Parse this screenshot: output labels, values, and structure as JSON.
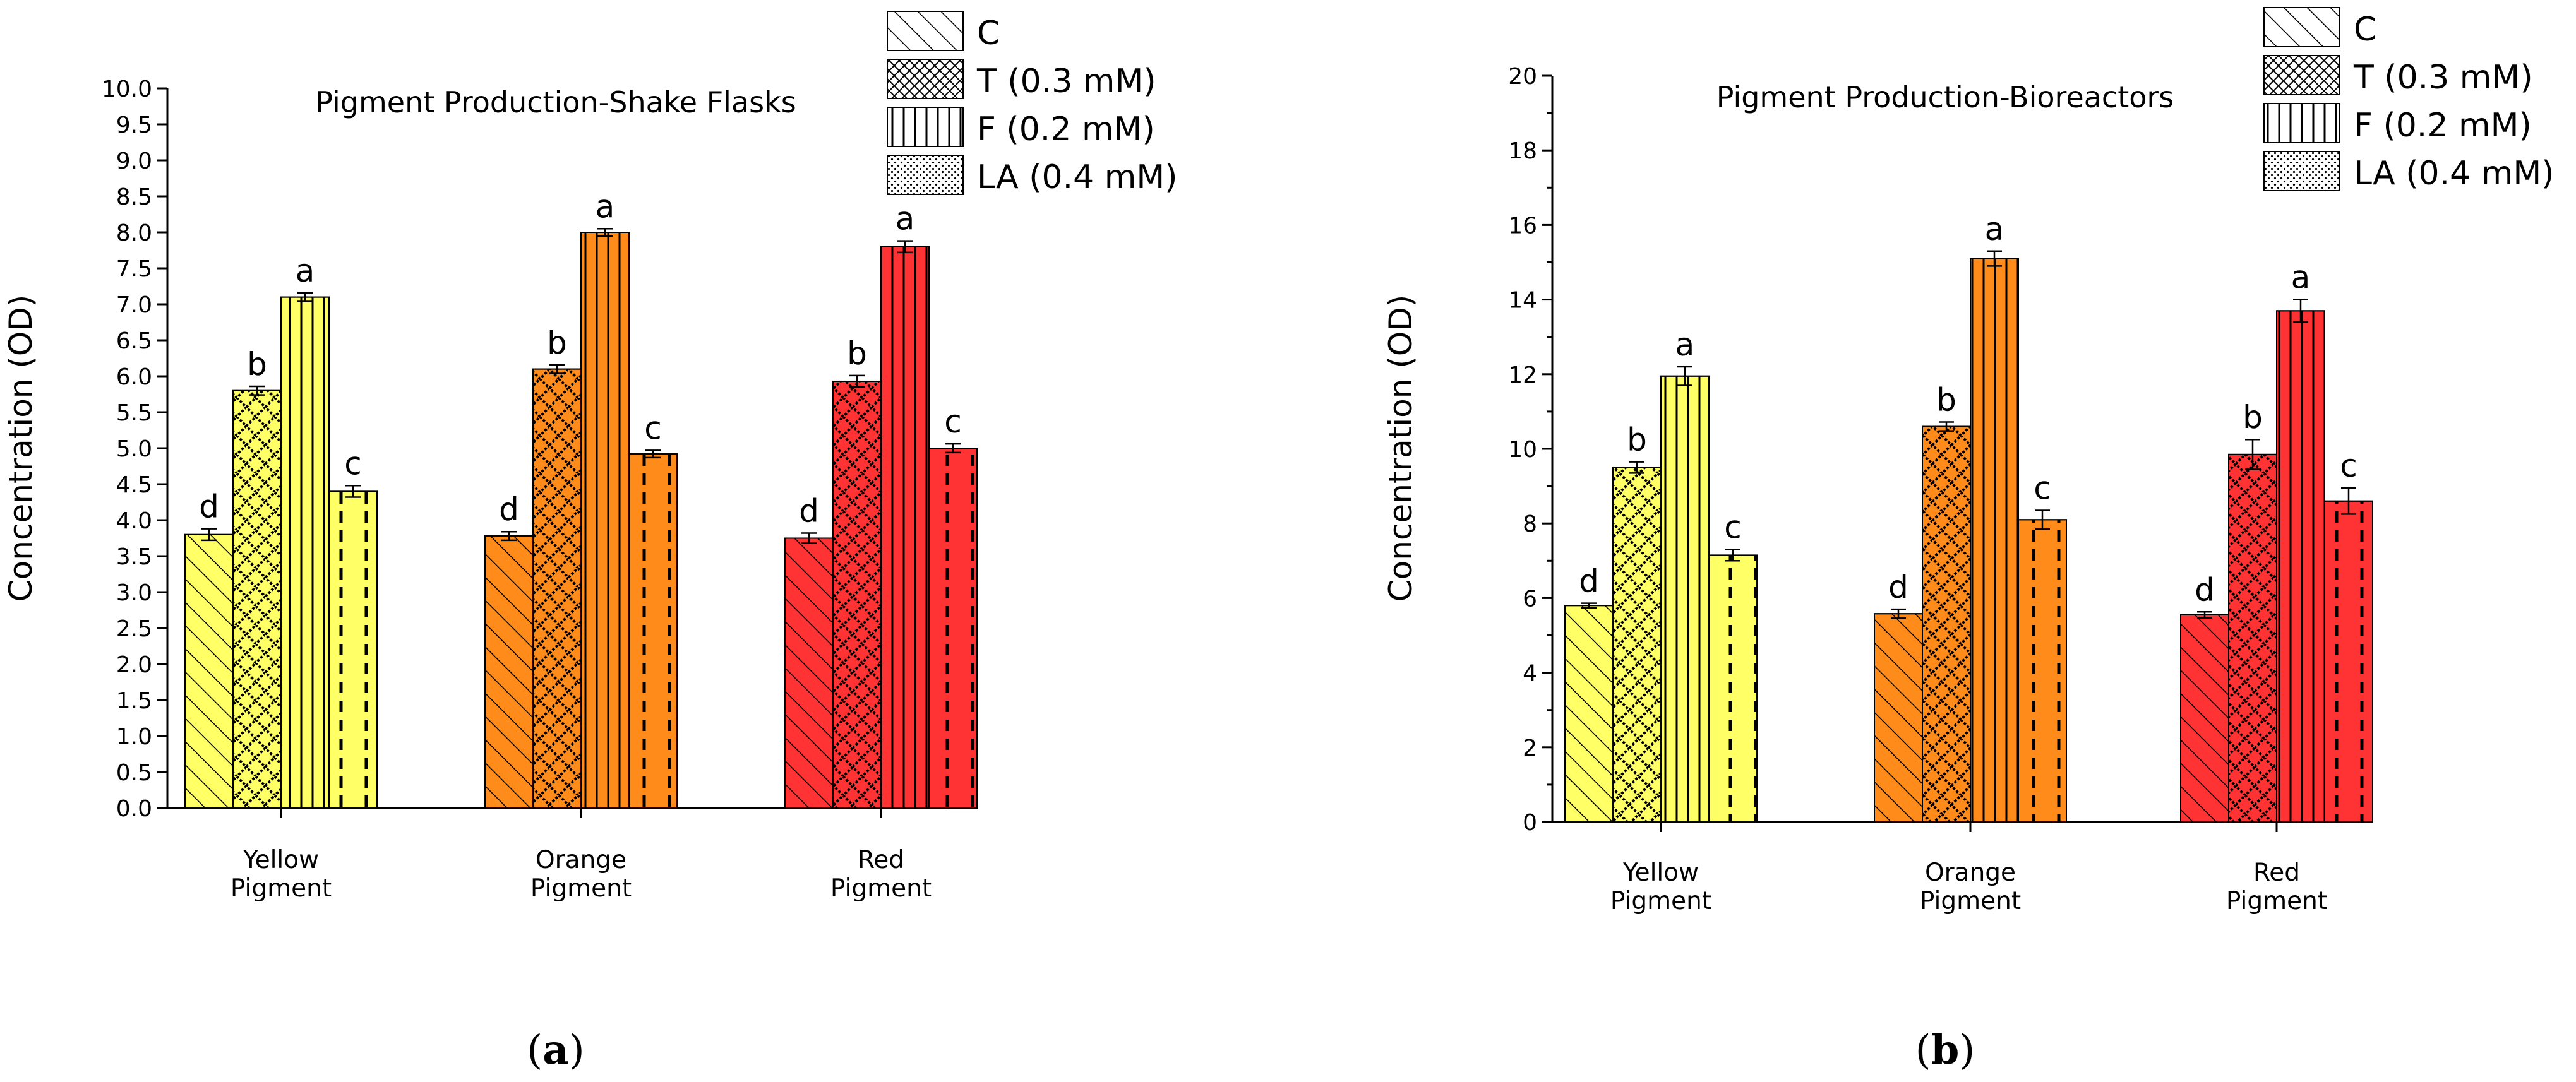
{
  "colors": {
    "yellow": "#ffff66",
    "orange": "#ff8c1a",
    "red": "#ff3333"
  },
  "chart_data": [
    {
      "type": "bar",
      "panel_label": "a",
      "title": "Pigment Production-Shake Flasks",
      "ylabel": "Concentration (OD)",
      "xlabel": "",
      "ylim": [
        0,
        10
      ],
      "ytick_step": 0.5,
      "ytick_labels": [
        "0.0",
        "0.5",
        "1.0",
        "1.5",
        "2.0",
        "2.5",
        "3.0",
        "3.5",
        "4.0",
        "4.5",
        "5.0",
        "5.5",
        "6.0",
        "6.5",
        "7.0",
        "7.5",
        "8.0",
        "8.5",
        "9.0",
        "9.5",
        "10.0"
      ],
      "groups": [
        {
          "label_line1": "Yellow",
          "label_line2": "Pigment",
          "color": "yellow",
          "values": [
            3.8,
            5.8,
            7.1,
            4.4
          ],
          "errors": [
            0.08,
            0.06,
            0.06,
            0.08
          ],
          "letters": [
            "d",
            "b",
            "a",
            "c"
          ]
        },
        {
          "label_line1": "Orange",
          "label_line2": "Pigment",
          "color": "orange",
          "values": [
            3.78,
            6.1,
            8.0,
            4.92
          ],
          "errors": [
            0.06,
            0.06,
            0.05,
            0.05
          ],
          "letters": [
            "d",
            "b",
            "a",
            "c"
          ]
        },
        {
          "label_line1": "Red",
          "label_line2": "Pigment",
          "color": "red",
          "values": [
            3.75,
            5.93,
            7.8,
            5.0
          ],
          "errors": [
            0.07,
            0.08,
            0.08,
            0.06
          ],
          "letters": [
            "d",
            "b",
            "a",
            "c"
          ]
        }
      ],
      "legend": [
        "C",
        "T (0.3 mM)",
        "F (0.2 mM)",
        "LA (0.4 mM)"
      ],
      "legend_position": "top-right"
    },
    {
      "type": "bar",
      "panel_label": "b",
      "title": "Pigment Production-Bioreactors",
      "ylabel": "Concentration (OD)",
      "xlabel": "",
      "ylim": [
        0,
        20
      ],
      "ytick_step": 2,
      "ytick_labels": [
        "0",
        "2",
        "4",
        "6",
        "8",
        "10",
        "12",
        "14",
        "16",
        "18",
        "20"
      ],
      "groups": [
        {
          "label_line1": "Yellow",
          "label_line2": "Pigment",
          "color": "yellow",
          "values": [
            5.8,
            9.5,
            11.95,
            7.15
          ],
          "errors": [
            0.06,
            0.15,
            0.25,
            0.15
          ],
          "letters": [
            "d",
            "b",
            "a",
            "c"
          ]
        },
        {
          "label_line1": "Orange",
          "label_line2": "Pigment",
          "color": "orange",
          "values": [
            5.58,
            10.6,
            15.1,
            8.1
          ],
          "errors": [
            0.12,
            0.12,
            0.2,
            0.25
          ],
          "letters": [
            "d",
            "b",
            "a",
            "c"
          ]
        },
        {
          "label_line1": "Red",
          "label_line2": "Pigment",
          "color": "red",
          "values": [
            5.55,
            9.85,
            13.7,
            8.6
          ],
          "errors": [
            0.08,
            0.4,
            0.3,
            0.35
          ],
          "letters": [
            "d",
            "b",
            "a",
            "c"
          ]
        }
      ],
      "legend": [
        "C",
        "T (0.3 mM)",
        "F (0.2 mM)",
        "LA (0.4 mM)"
      ],
      "legend_position": "top-right"
    }
  ]
}
